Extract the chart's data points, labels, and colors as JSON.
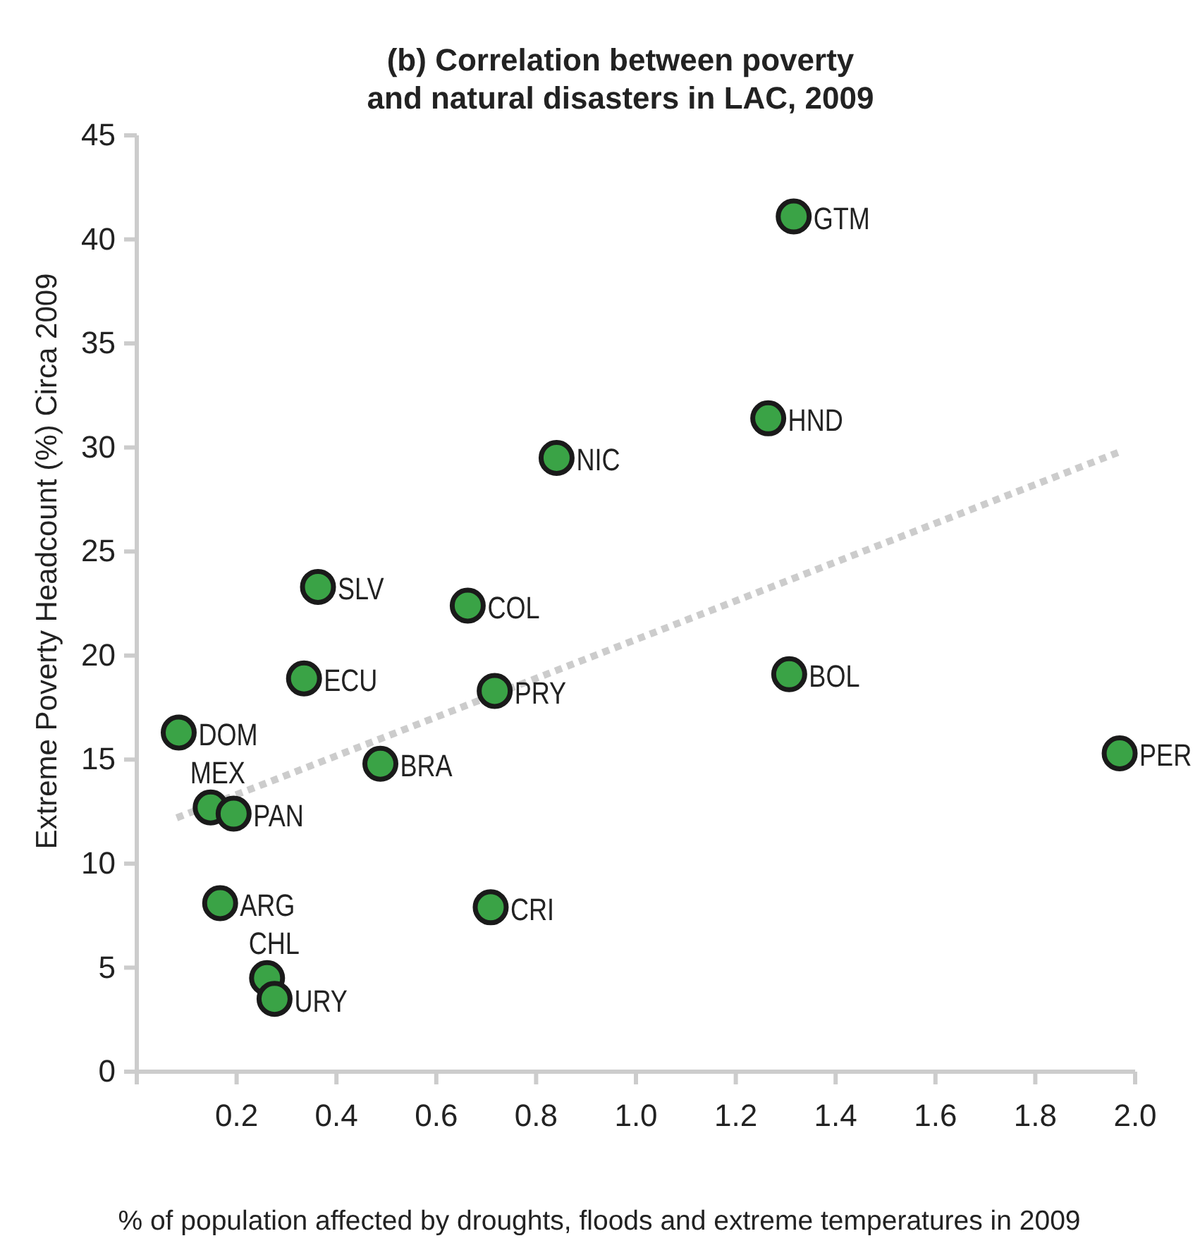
{
  "chart_data": {
    "type": "scatter",
    "title": "(b) Correlation between poverty\nand natural disasters in LAC, 2009",
    "xlabel": "% of population affected by droughts, floods and extreme temperatures in 2009",
    "ylabel": "Extreme Poverty Headcount (%) Circa 2009",
    "xlim": [
      0,
      2.0
    ],
    "ylim": [
      0,
      45
    ],
    "xticks": [
      {
        "value": 0,
        "label": null
      },
      0.2,
      0.4,
      0.6,
      0.8,
      {
        "value": 1,
        "label": "1.0"
      },
      1.2,
      1.4,
      1.6,
      1.8,
      {
        "value": 2,
        "label": "2.0"
      }
    ],
    "yticks": [
      0,
      5,
      10,
      15,
      20,
      25,
      30,
      35,
      40,
      45
    ],
    "grid": false,
    "series": [
      {
        "type": "line",
        "color": "#cccccc",
        "line_style": "dotted",
        "marker": "none",
        "x": [
          0.08,
          1.97
        ],
        "values": [
          12.2,
          29.8
        ]
      },
      {
        "color": "#3aa346",
        "marker": "circle",
        "x": [
          1.316,
          1.265,
          0.841,
          0.363,
          0.663,
          0.335,
          0.717,
          1.307,
          0.084,
          0.148,
          0.194,
          0.488,
          1.969,
          0.167,
          0.709,
          0.261,
          0.276
        ],
        "values": [
          41.1,
          31.4,
          29.5,
          23.3,
          22.4,
          18.9,
          18.3,
          19.1,
          16.3,
          12.7,
          12.4,
          14.8,
          15.3,
          8.1,
          7.9,
          4.5,
          3.5
        ]
      }
    ],
    "annotations": [
      {
        "text": "GTM",
        "x": 1.316,
        "y": 41.1
      },
      {
        "text": "HND",
        "x": 1.265,
        "y": 31.4
      },
      {
        "text": "NIC",
        "x": 0.841,
        "y": 29.5
      },
      {
        "text": "SLV",
        "x": 0.363,
        "y": 23.3
      },
      {
        "text": "COL",
        "x": 0.663,
        "y": 22.4
      },
      {
        "text": "ECU",
        "x": 0.335,
        "y": 18.9
      },
      {
        "text": "PRY",
        "x": 0.717,
        "y": 18.3
      },
      {
        "text": "BOL",
        "x": 1.307,
        "y": 19.1
      },
      {
        "text": "DOM",
        "x": 0.084,
        "y": 16.3
      },
      {
        "text": "MEX",
        "x": 0.148,
        "y": 12.7
      },
      {
        "text": "PAN",
        "x": 0.194,
        "y": 12.4
      },
      {
        "text": "BRA",
        "x": 0.488,
        "y": 14.8
      },
      {
        "text": "PER",
        "x": 1.969,
        "y": 15.3
      },
      {
        "text": "ARG",
        "x": 0.167,
        "y": 8.1
      },
      {
        "text": "CRI",
        "x": 0.709,
        "y": 7.9
      },
      {
        "text": "CHL",
        "x": 0.261,
        "y": 4.5
      },
      {
        "text": "URY",
        "x": 0.276,
        "y": 3.5
      }
    ]
  }
}
